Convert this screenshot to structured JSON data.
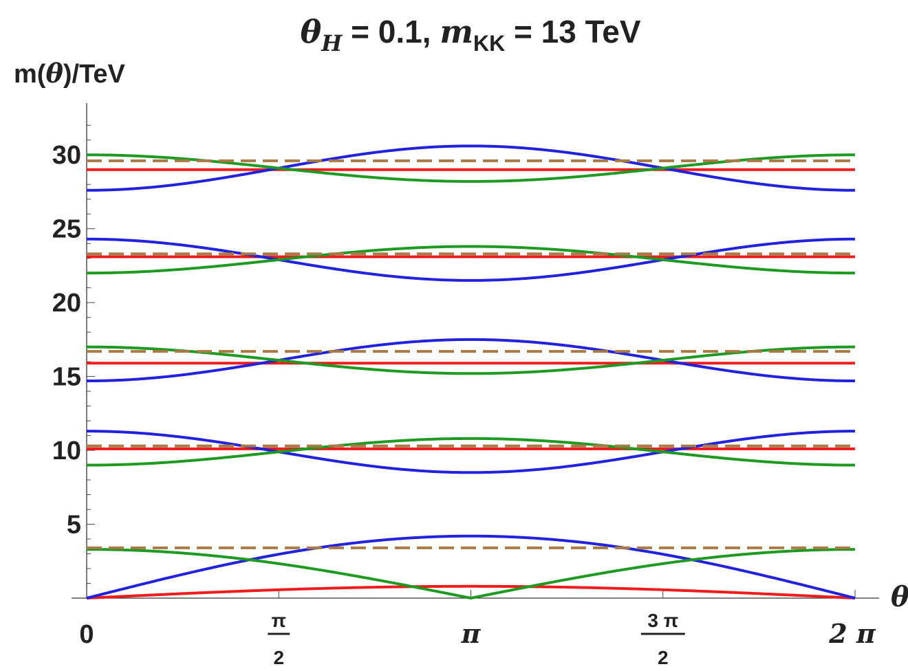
{
  "chart_data": {
    "type": "line",
    "title": {
      "theta_sym": "θ",
      "theta_sub": "H",
      "theta_val": " = 0.1, ",
      "m_sym": "m",
      "m_sub": "KK",
      "m_val": " = 13 TeV"
    },
    "ylabel": {
      "pre": "m(",
      "theta": "θ",
      "post": ")/TeV"
    },
    "xlabel": "θ",
    "xlim": [
      0,
      6.2832
    ],
    "ylim": [
      0,
      33.5
    ],
    "y_ticks": [
      5,
      10,
      15,
      20,
      25,
      30
    ],
    "y_tick_labels": [
      "5",
      "10",
      "15",
      "20",
      "25",
      "30"
    ],
    "x_ticks": [
      {
        "value": 0,
        "kind": "plain",
        "text": "0"
      },
      {
        "value": 1.5708,
        "kind": "frac",
        "num": "π",
        "den": "2"
      },
      {
        "value": 3.1416,
        "kind": "plain",
        "text": "π"
      },
      {
        "value": 4.7124,
        "kind": "frac",
        "num": "3 π",
        "den": "2"
      },
      {
        "value": 6.2832,
        "kind": "plain",
        "text": "2 π"
      }
    ],
    "grid": false,
    "legend": "none",
    "colors": {
      "red": "#ee1c1c",
      "blue": "#2222dd",
      "green": "#1e9a22",
      "brown": "#a87a46"
    },
    "series": [
      {
        "color": "red",
        "style": "solid",
        "shape": "sine",
        "offset": 0,
        "amp": 0.8
      },
      {
        "color": "blue",
        "style": "solid",
        "shape": "sine",
        "offset": 0,
        "amp": 4.2
      },
      {
        "color": "green",
        "style": "solid",
        "shape": "abscos",
        "offset": 0,
        "amp": 3.3
      },
      {
        "color": "brown",
        "style": "dashed",
        "shape": "const",
        "offset": 3.4,
        "amp": 0
      },
      {
        "color": "red",
        "style": "solid",
        "shape": "const",
        "offset": 10.1,
        "amp": 0
      },
      {
        "color": "blue",
        "style": "solid",
        "shape": "cos",
        "offset": 9.9,
        "amp": 1.4
      },
      {
        "color": "green",
        "style": "solid",
        "shape": "cos",
        "offset": 9.9,
        "amp": -0.9
      },
      {
        "color": "brown",
        "style": "dashed",
        "shape": "const",
        "offset": 10.3,
        "amp": 0
      },
      {
        "color": "red",
        "style": "solid",
        "shape": "const",
        "offset": 15.9,
        "amp": 0
      },
      {
        "color": "blue",
        "style": "solid",
        "shape": "cos",
        "offset": 16.1,
        "amp": -1.4
      },
      {
        "color": "green",
        "style": "solid",
        "shape": "cos",
        "offset": 16.1,
        "amp": 0.9
      },
      {
        "color": "brown",
        "style": "dashed",
        "shape": "const",
        "offset": 16.7,
        "amp": 0
      },
      {
        "color": "red",
        "style": "solid",
        "shape": "const",
        "offset": 23.1,
        "amp": 0
      },
      {
        "color": "blue",
        "style": "solid",
        "shape": "cos",
        "offset": 22.9,
        "amp": 1.4
      },
      {
        "color": "green",
        "style": "solid",
        "shape": "cos",
        "offset": 22.9,
        "amp": -0.9
      },
      {
        "color": "brown",
        "style": "dashed",
        "shape": "const",
        "offset": 23.3,
        "amp": 0
      },
      {
        "color": "red",
        "style": "solid",
        "shape": "const",
        "offset": 29.0,
        "amp": 0
      },
      {
        "color": "blue",
        "style": "solid",
        "shape": "cos",
        "offset": 29.1,
        "amp": -1.5
      },
      {
        "color": "green",
        "style": "solid",
        "shape": "cos",
        "offset": 29.1,
        "amp": 0.9
      },
      {
        "color": "brown",
        "style": "dashed",
        "shape": "const",
        "offset": 29.6,
        "amp": 0
      }
    ]
  }
}
